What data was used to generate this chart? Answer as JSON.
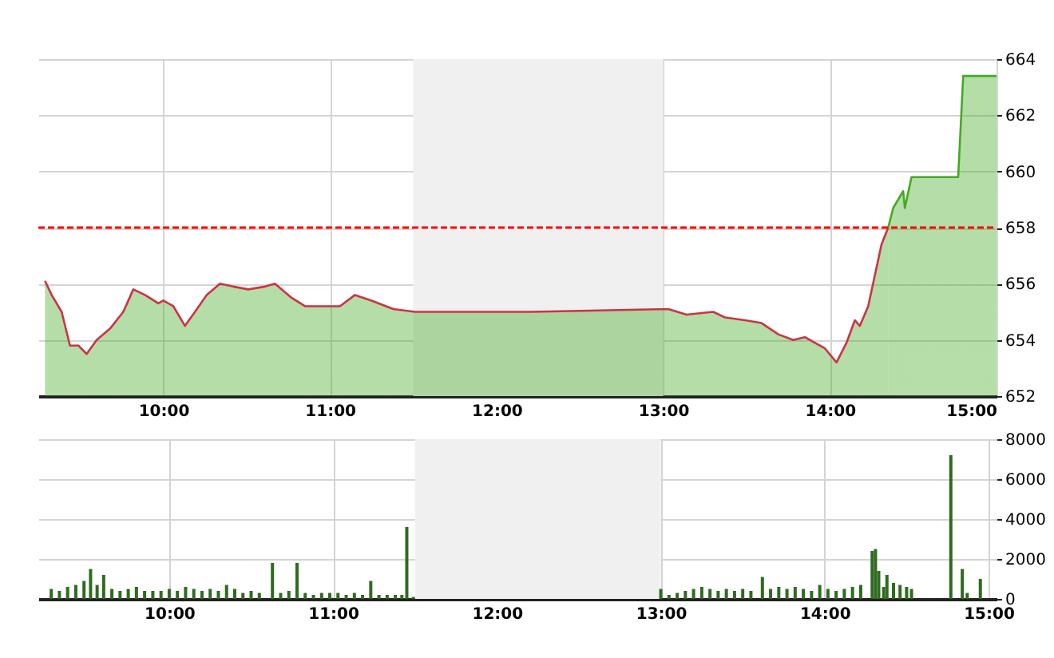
{
  "chart_data": [
    {
      "type": "area",
      "xlim": [
        9.25,
        15
      ],
      "xticks": [
        {
          "value": 10,
          "label": "10:00"
        },
        {
          "value": 11,
          "label": "11:00"
        },
        {
          "value": 12,
          "label": "12:00"
        },
        {
          "value": 13,
          "label": "13:00"
        },
        {
          "value": 14,
          "label": "14:00"
        },
        {
          "value": 15,
          "label": "15:00"
        }
      ],
      "ylim": [
        652,
        664
      ],
      "yticks": [
        652,
        654,
        656,
        658,
        660,
        662,
        664
      ],
      "grid": true,
      "series": [
        {
          "color": "#cc3344",
          "x": [
            9.29,
            9.33,
            9.39,
            9.44,
            9.49,
            9.54,
            9.6,
            9.68,
            9.76,
            9.82,
            9.89,
            9.97,
            10.0,
            10.06,
            10.13,
            10.19,
            10.26,
            10.34,
            10.42,
            10.51,
            10.61,
            10.67,
            10.77,
            10.85,
            10.96,
            11.06,
            11.15,
            11.25,
            11.38,
            11.51,
            12.21,
            13.03,
            13.14,
            13.3,
            13.37,
            13.49,
            13.59,
            13.69,
            13.78,
            13.85,
            13.97,
            14.04,
            14.1,
            14.15,
            14.18,
            14.23,
            14.31,
            14.35
          ],
          "values": [
            656.1,
            655.6,
            655.0,
            653.8,
            653.8,
            653.5,
            654.0,
            654.4,
            655.0,
            655.8,
            655.6,
            655.3,
            655.4,
            655.2,
            654.5,
            655.0,
            655.6,
            656.0,
            655.9,
            655.8,
            655.9,
            656.0,
            655.5,
            655.2,
            655.2,
            655.2,
            655.6,
            655.4,
            655.1,
            655.0,
            655.0,
            655.1,
            654.9,
            655.0,
            654.8,
            654.7,
            654.6,
            654.2,
            654.0,
            654.1,
            653.7,
            653.2,
            653.9,
            654.7,
            654.5,
            655.2,
            657.4,
            658.0
          ]
        },
        {
          "color": "#44aa22",
          "x": [
            14.35,
            14.38,
            14.44,
            14.45,
            14.49,
            14.53,
            14.77,
            14.8,
            15.0
          ],
          "values": [
            658.0,
            658.7,
            659.3,
            658.7,
            659.8,
            659.8,
            659.8,
            663.4,
            663.4
          ]
        }
      ],
      "ref_lines": [
        {
          "axis": "y",
          "value": 658,
          "color": "#ff0000",
          "line_style": "dashed"
        }
      ],
      "bands": [
        {
          "axis": "x",
          "from": 11.5,
          "to": 13,
          "color": "#f0f0f0"
        }
      ]
    },
    {
      "type": "bar",
      "xlim": [
        9.25,
        15
      ],
      "xticks": [
        {
          "value": 10,
          "label": "10:00"
        },
        {
          "value": 11,
          "label": "11:00"
        },
        {
          "value": 12,
          "label": "12:00"
        },
        {
          "value": 13,
          "label": "13:00"
        },
        {
          "value": 14,
          "label": "14:00"
        },
        {
          "value": 15,
          "label": "15:00"
        }
      ],
      "ylim": [
        0,
        8000
      ],
      "yticks": [
        0,
        2000,
        4000,
        6000,
        8000
      ],
      "grid": true,
      "series": [
        {
          "color": "#2e6b1e",
          "x": [
            9.28,
            9.33,
            9.38,
            9.43,
            9.48,
            9.52,
            9.56,
            9.6,
            9.65,
            9.7,
            9.75,
            9.8,
            9.85,
            9.9,
            9.95,
            10.0,
            10.05,
            10.1,
            10.15,
            10.2,
            10.25,
            10.3,
            10.35,
            10.4,
            10.45,
            10.5,
            10.55,
            10.63,
            10.68,
            10.73,
            10.78,
            10.83,
            10.88,
            10.93,
            10.98,
            11.03,
            11.08,
            11.13,
            11.18,
            11.23,
            11.28,
            11.33,
            11.38,
            11.42,
            11.45,
            11.49,
            13.0,
            13.05,
            13.1,
            13.15,
            13.2,
            13.25,
            13.3,
            13.35,
            13.4,
            13.45,
            13.5,
            13.55,
            13.62,
            13.67,
            13.72,
            13.77,
            13.82,
            13.87,
            13.92,
            13.97,
            14.02,
            14.07,
            14.12,
            14.17,
            14.22,
            14.29,
            14.31,
            14.33,
            14.36,
            14.38,
            14.42,
            14.46,
            14.5,
            14.53,
            14.77,
            14.84,
            14.87,
            14.95
          ],
          "values": [
            500,
            400,
            600,
            700,
            900,
            1500,
            700,
            1200,
            500,
            400,
            500,
            600,
            400,
            400,
            400,
            500,
            400,
            600,
            500,
            400,
            500,
            400,
            700,
            500,
            300,
            400,
            300,
            1800,
            300,
            400,
            1800,
            300,
            200,
            300,
            300,
            300,
            200,
            300,
            200,
            900,
            200,
            200,
            200,
            200,
            3600,
            100,
            500,
            200,
            300,
            400,
            500,
            600,
            500,
            400,
            500,
            400,
            500,
            400,
            1100,
            500,
            600,
            500,
            600,
            500,
            400,
            700,
            500,
            400,
            500,
            600,
            700,
            2400,
            2500,
            1400,
            600,
            1200,
            800,
            700,
            600,
            500,
            7200,
            1500,
            300,
            1000
          ]
        }
      ],
      "bands": [
        {
          "axis": "x",
          "from": 11.5,
          "to": 13,
          "color": "#f0f0f0"
        }
      ]
    }
  ]
}
